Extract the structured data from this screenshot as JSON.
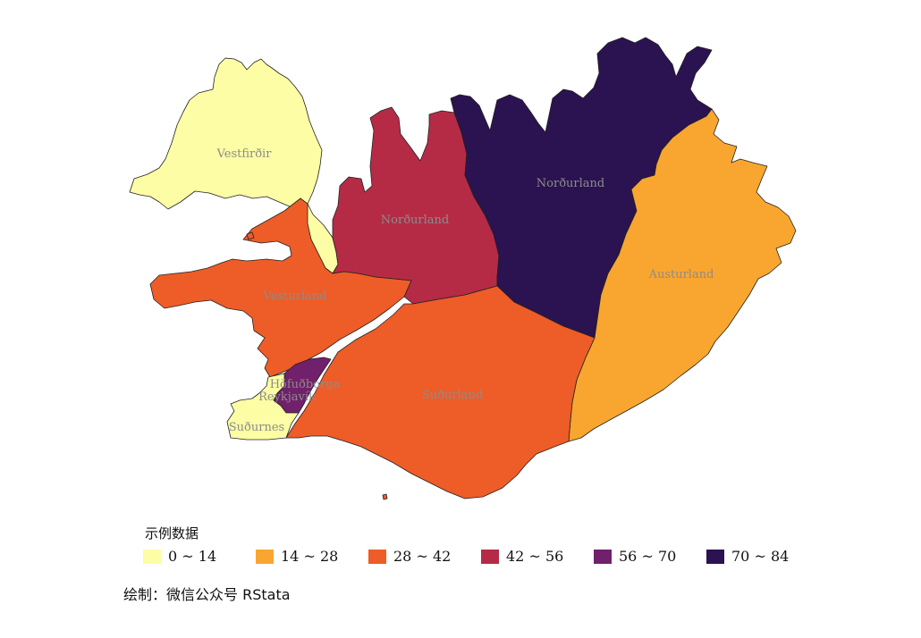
{
  "map": {
    "regions": [
      {
        "id": "vestfirdir",
        "name": "Vestfirðir",
        "class": "0 ~ 14",
        "color": "#FCFDA4"
      },
      {
        "id": "nordurland-vestra",
        "name": "Norðurland",
        "class": "42 ~ 56",
        "color": "#B52B46"
      },
      {
        "id": "nordurland-eystra",
        "name": "Norðurland",
        "class": "70 ~ 84",
        "color": "#2B1250"
      },
      {
        "id": "austurland",
        "name": "Austurland",
        "class": "14 ~ 28",
        "color": "#F9A630"
      },
      {
        "id": "vesturland",
        "name": "Vesturland",
        "class": "28 ~ 42",
        "color": "#EE5C27"
      },
      {
        "id": "sudurland",
        "name": "Suðurland",
        "class": "28 ~ 42",
        "color": "#EE5C27"
      },
      {
        "id": "hofudborgarsvaedi",
        "name": "Höfuðborga",
        "name_line2": "Reykjavík",
        "class": "56 ~ 70",
        "color": "#71206C"
      },
      {
        "id": "sudurnes",
        "name": "Suðurnes",
        "class": "0 ~ 14",
        "color": "#FCFDA4"
      }
    ]
  },
  "legend": {
    "title": "示例数据",
    "items": [
      {
        "label": "0 ~ 14",
        "color": "#FCFDA4"
      },
      {
        "label": "14 ~ 28",
        "color": "#F9A630"
      },
      {
        "label": "28 ~ 42",
        "color": "#EE5C27"
      },
      {
        "label": "42 ~ 56",
        "color": "#B52B46"
      },
      {
        "label": "56 ~ 70",
        "color": "#71206C"
      },
      {
        "label": "70 ~ 84",
        "color": "#2B1250"
      }
    ]
  },
  "credit": "绘制：微信公众号 RStata"
}
